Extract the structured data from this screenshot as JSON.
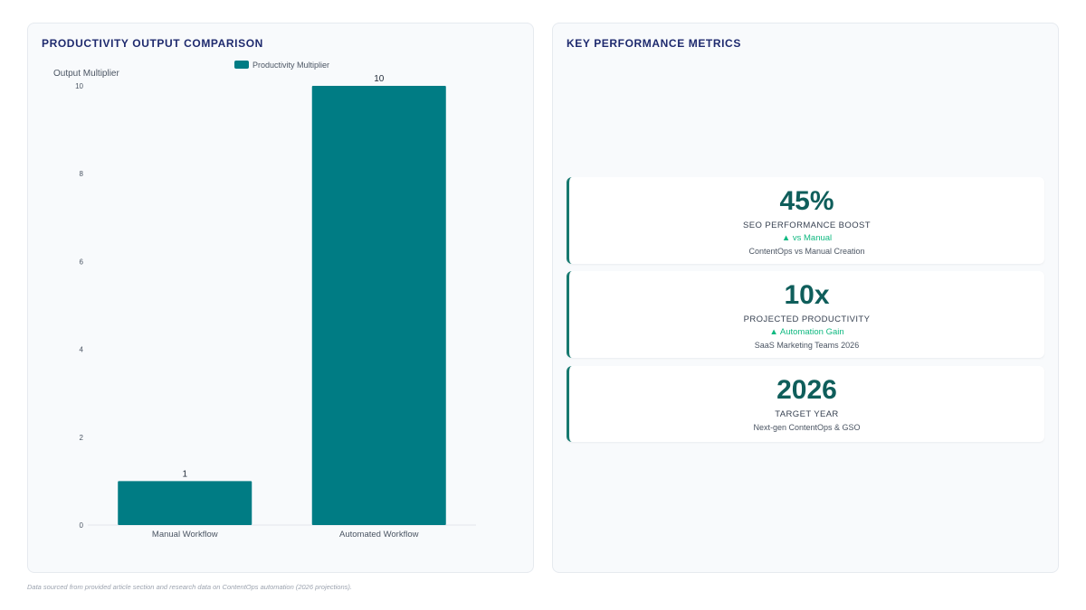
{
  "chart_panel": {
    "title": "PRODUCTIVITY OUTPUT COMPARISON"
  },
  "chart_data": {
    "type": "bar",
    "categories": [
      "Manual Workflow",
      "Automated Workflow"
    ],
    "series": [
      {
        "name": "Productivity Multiplier",
        "values": [
          1,
          10
        ],
        "color": "#007c84"
      }
    ],
    "ylabel": "Output Multiplier",
    "xlabel": "",
    "ylim": [
      0,
      10
    ],
    "yticks": [
      0,
      2,
      4,
      6,
      8,
      10
    ],
    "data_labels": [
      "1",
      "10"
    ],
    "legend_position": "top-center",
    "grid": false
  },
  "metrics_panel": {
    "title": "KEY PERFORMANCE METRICS",
    "cards": [
      {
        "value": "45%",
        "label": "SEO PERFORMANCE BOOST",
        "trend": "▲ vs Manual",
        "note": "ContentOps vs Manual Creation"
      },
      {
        "value": "10x",
        "label": "PROJECTED PRODUCTIVITY",
        "trend": "▲ Automation Gain",
        "note": "SaaS Marketing Teams 2026"
      },
      {
        "value": "2026",
        "label": "TARGET YEAR",
        "trend": "",
        "note": "Next-gen ContentOps & GSO"
      }
    ]
  },
  "footnote": "Data sourced from provided article section and research data on ContentOps automation (2026 projections).",
  "colors": {
    "accent": "#007c84",
    "title": "#1e2a6e",
    "trend": "#10b981",
    "value": "#0f5e5b"
  }
}
